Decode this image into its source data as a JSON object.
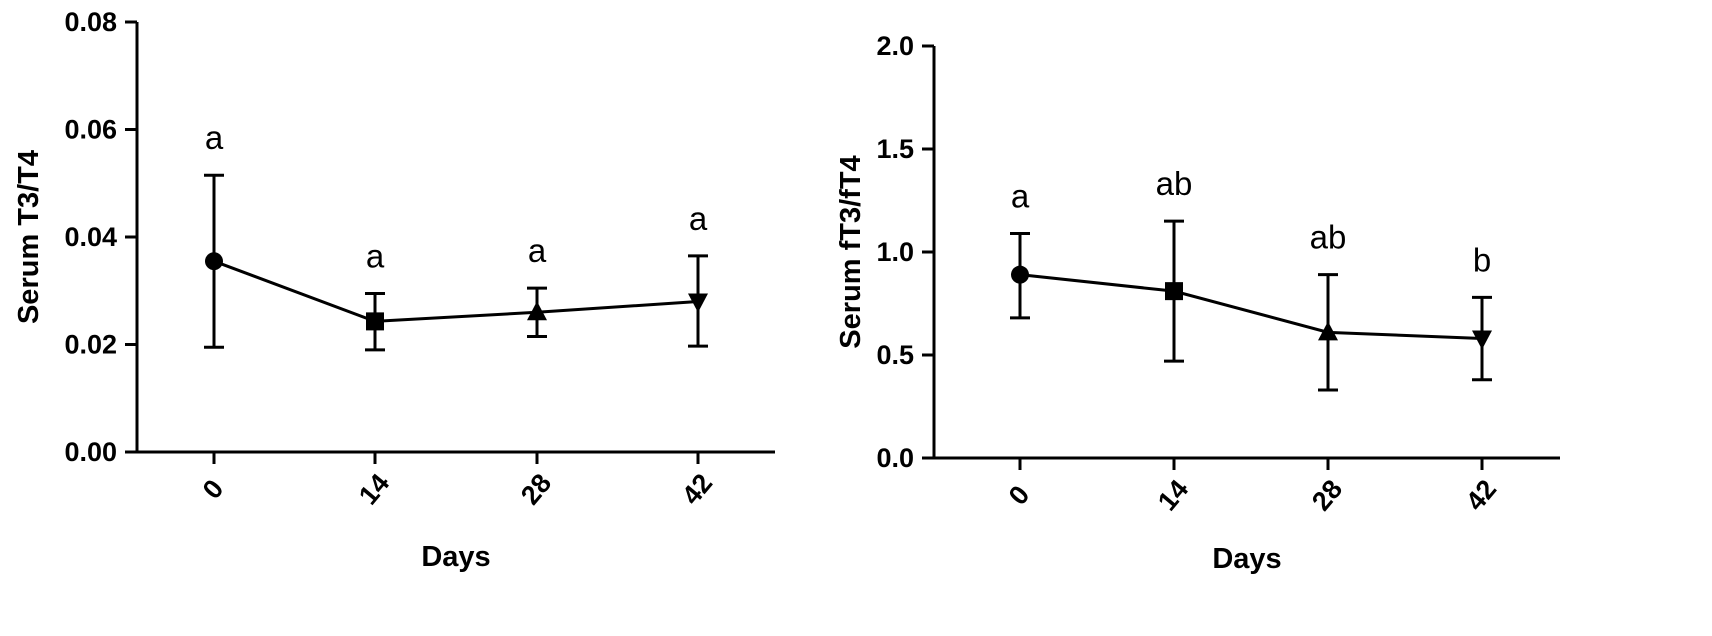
{
  "chart_data": [
    {
      "type": "line",
      "xlabel": "Days",
      "ylabel": "Serum T3/T4",
      "categories": [
        "0",
        "14",
        "28",
        "42"
      ],
      "ylim": [
        0,
        0.08
      ],
      "yticks": [
        "0.00",
        "0.02",
        "0.04",
        "0.06",
        "0.08"
      ],
      "grid": false,
      "series": [
        {
          "values": [
            0.0355,
            0.0243,
            0.026,
            0.028
          ],
          "error_upper": [
            0.0515,
            0.0295,
            0.0305,
            0.0365
          ],
          "error_lower": [
            0.0195,
            0.019,
            0.0215,
            0.0197
          ],
          "markers": [
            "circle",
            "square",
            "triangle-up",
            "triangle-down"
          ],
          "annotations": [
            "a",
            "a",
            "a",
            "a"
          ]
        }
      ]
    },
    {
      "type": "line",
      "xlabel": "Days",
      "ylabel": "Serum fT3/fT4",
      "categories": [
        "0",
        "14",
        "28",
        "42"
      ],
      "ylim": [
        0,
        2.0
      ],
      "yticks": [
        "0.0",
        "0.5",
        "1.0",
        "1.5",
        "2.0"
      ],
      "grid": false,
      "series": [
        {
          "values": [
            0.89,
            0.81,
            0.61,
            0.58
          ],
          "error_upper": [
            1.09,
            1.15,
            0.89,
            0.78
          ],
          "error_lower": [
            0.68,
            0.47,
            0.33,
            0.38
          ],
          "markers": [
            "circle",
            "square",
            "triangle-up",
            "triangle-down"
          ],
          "annotations": [
            "a",
            "ab",
            "ab",
            "b"
          ]
        }
      ]
    }
  ]
}
